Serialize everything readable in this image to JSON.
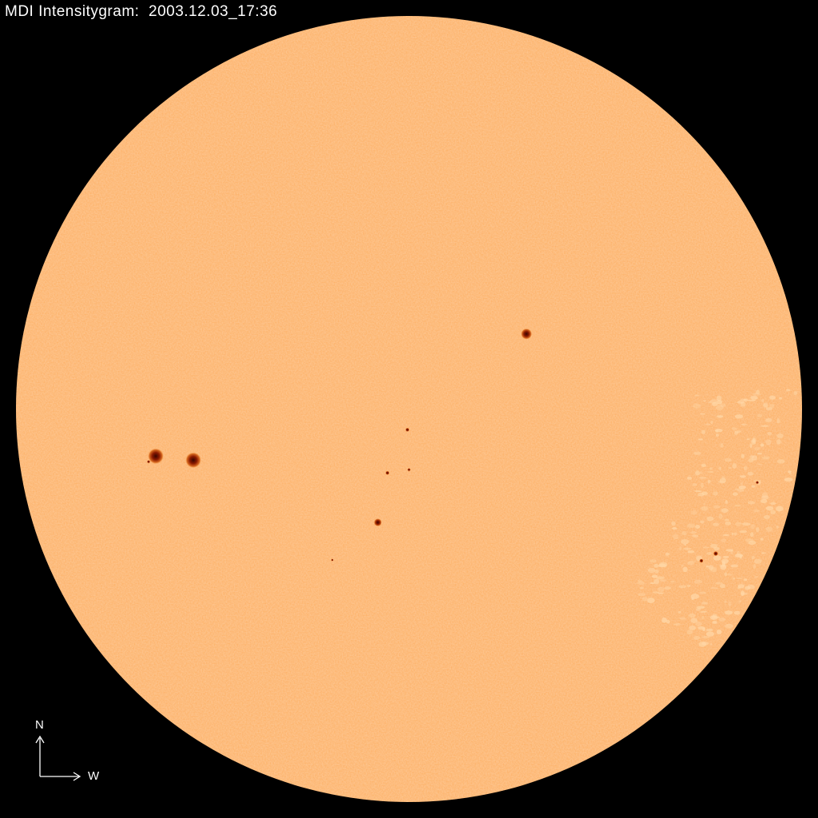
{
  "header": {
    "instrument_label": "MDI Intensitygram:",
    "timestamp": "2003.12.03_17:36"
  },
  "image": {
    "disk_color": "#fdae5f",
    "background_color": "#000000",
    "sunspot_color": "#8a1a00"
  },
  "compass": {
    "north_label": "N",
    "west_label": "W"
  }
}
